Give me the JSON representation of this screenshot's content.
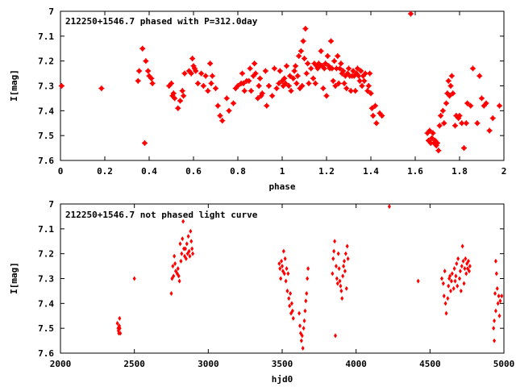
{
  "chart_data": [
    {
      "type": "scatter",
      "title": "212250+1546.7 phased with P=312.0day",
      "xlabel": "phase",
      "ylabel": "I[mag]",
      "xlim": [
        0,
        2
      ],
      "ylim": [
        7.6,
        7
      ],
      "y_inverted": true,
      "grid": false,
      "color": "#ff0000",
      "xticks": [
        "0",
        "0.2",
        "0.4",
        "0.6",
        "0.8",
        "1",
        "1.2",
        "1.4",
        "1.6",
        "1.8",
        "2"
      ],
      "yticks": [
        "7",
        "7.1",
        "7.2",
        "7.3",
        "7.4",
        "7.5",
        "7.6"
      ],
      "points": [
        [
          0.005,
          7.3
        ],
        [
          0.185,
          7.31
        ],
        [
          0.35,
          7.28
        ],
        [
          0.355,
          7.24
        ],
        [
          0.37,
          7.15
        ],
        [
          0.38,
          7.53
        ],
        [
          0.385,
          7.2
        ],
        [
          0.395,
          7.24
        ],
        [
          0.4,
          7.26
        ],
        [
          0.41,
          7.27
        ],
        [
          0.415,
          7.29
        ],
        [
          0.49,
          7.3
        ],
        [
          0.5,
          7.29
        ],
        [
          0.505,
          7.34
        ],
        [
          0.51,
          7.33
        ],
        [
          0.515,
          7.35
        ],
        [
          0.53,
          7.39
        ],
        [
          0.54,
          7.36
        ],
        [
          0.55,
          7.32
        ],
        [
          0.555,
          7.34
        ],
        [
          0.56,
          7.25
        ],
        [
          0.58,
          7.24
        ],
        [
          0.59,
          7.25
        ],
        [
          0.595,
          7.19
        ],
        [
          0.6,
          7.22
        ],
        [
          0.605,
          7.23
        ],
        [
          0.61,
          7.24
        ],
        [
          0.62,
          7.29
        ],
        [
          0.635,
          7.25
        ],
        [
          0.645,
          7.3
        ],
        [
          0.655,
          7.26
        ],
        [
          0.665,
          7.32
        ],
        [
          0.675,
          7.21
        ],
        [
          0.68,
          7.29
        ],
        [
          0.685,
          7.26
        ],
        [
          0.7,
          7.31
        ],
        [
          0.71,
          7.38
        ],
        [
          0.72,
          7.42
        ],
        [
          0.73,
          7.44
        ],
        [
          0.75,
          7.35
        ],
        [
          0.76,
          7.4
        ],
        [
          0.78,
          7.37
        ],
        [
          0.79,
          7.31
        ],
        [
          0.8,
          7.3
        ],
        [
          0.815,
          7.29
        ],
        [
          0.82,
          7.25
        ],
        [
          0.825,
          7.29
        ],
        [
          0.83,
          7.32
        ],
        [
          0.84,
          7.28
        ],
        [
          0.85,
          7.28
        ],
        [
          0.855,
          7.23
        ],
        [
          0.86,
          7.32
        ],
        [
          0.87,
          7.26
        ],
        [
          0.875,
          7.21
        ],
        [
          0.88,
          7.25
        ],
        [
          0.89,
          7.35
        ],
        [
          0.895,
          7.3
        ],
        [
          0.9,
          7.27
        ],
        [
          0.905,
          7.34
        ],
        [
          0.91,
          7.33
        ],
        [
          0.925,
          7.24
        ],
        [
          0.93,
          7.38
        ],
        [
          0.94,
          7.3
        ],
        [
          0.955,
          7.34
        ],
        [
          0.965,
          7.23
        ],
        [
          0.975,
          7.31
        ],
        [
          0.985,
          7.29
        ],
        [
          0.99,
          7.24
        ],
        [
          1.0,
          7.28
        ],
        [
          1.005,
          7.3
        ],
        [
          1.01,
          7.27
        ],
        [
          1.015,
          7.29
        ],
        [
          1.02,
          7.22
        ],
        [
          1.03,
          7.3
        ],
        [
          1.035,
          7.26
        ],
        [
          1.04,
          7.32
        ],
        [
          1.05,
          7.27
        ],
        [
          1.055,
          7.24
        ],
        [
          1.06,
          7.22
        ],
        [
          1.065,
          7.29
        ],
        [
          1.07,
          7.26
        ],
        [
          1.075,
          7.18
        ],
        [
          1.08,
          7.31
        ],
        [
          1.085,
          7.16
        ],
        [
          1.09,
          7.3
        ],
        [
          1.095,
          7.12
        ],
        [
          1.1,
          7.19
        ],
        [
          1.105,
          7.07
        ],
        [
          1.11,
          7.25
        ],
        [
          1.115,
          7.21
        ],
        [
          1.12,
          7.29
        ],
        [
          1.13,
          7.23
        ],
        [
          1.14,
          7.27
        ],
        [
          1.145,
          7.21
        ],
        [
          1.15,
          7.29
        ],
        [
          1.155,
          7.22
        ],
        [
          1.16,
          7.23
        ],
        [
          1.165,
          7.21
        ],
        [
          1.17,
          7.22
        ],
        [
          1.175,
          7.16
        ],
        [
          1.18,
          7.22
        ],
        [
          1.185,
          7.31
        ],
        [
          1.19,
          7.23
        ],
        [
          1.195,
          7.21
        ],
        [
          1.2,
          7.34
        ],
        [
          1.205,
          7.18
        ],
        [
          1.21,
          7.22
        ],
        [
          1.215,
          7.23
        ],
        [
          1.22,
          7.12
        ],
        [
          1.225,
          7.23
        ],
        [
          1.23,
          7.28
        ],
        [
          1.235,
          7.2
        ],
        [
          1.24,
          7.3
        ],
        [
          1.245,
          7.23
        ],
        [
          1.25,
          7.18
        ],
        [
          1.255,
          7.29
        ],
        [
          1.26,
          7.23
        ],
        [
          1.265,
          7.21
        ],
        [
          1.27,
          7.25
        ],
        [
          1.275,
          7.24
        ],
        [
          1.28,
          7.29
        ],
        [
          1.285,
          7.26
        ],
        [
          1.29,
          7.31
        ],
        [
          1.295,
          7.25
        ],
        [
          1.3,
          7.23
        ],
        [
          1.305,
          7.26
        ],
        [
          1.31,
          7.32
        ],
        [
          1.315,
          7.26
        ],
        [
          1.32,
          7.24
        ],
        [
          1.325,
          7.26
        ],
        [
          1.33,
          7.32
        ],
        [
          1.335,
          7.25
        ],
        [
          1.34,
          7.23
        ],
        [
          1.345,
          7.26
        ],
        [
          1.35,
          7.28
        ],
        [
          1.355,
          7.24
        ],
        [
          1.36,
          7.3
        ],
        [
          1.365,
          7.26
        ],
        [
          1.37,
          7.28
        ],
        [
          1.375,
          7.25
        ],
        [
          1.385,
          7.32
        ],
        [
          1.39,
          7.3
        ],
        [
          1.395,
          7.25
        ],
        [
          1.4,
          7.33
        ],
        [
          1.405,
          7.39
        ],
        [
          1.41,
          7.42
        ],
        [
          1.42,
          7.38
        ],
        [
          1.425,
          7.45
        ],
        [
          1.44,
          7.41
        ],
        [
          1.45,
          7.42
        ],
        [
          1.58,
          7.01
        ],
        [
          1.655,
          7.49
        ],
        [
          1.66,
          7.52
        ],
        [
          1.665,
          7.48
        ],
        [
          1.67,
          7.53
        ],
        [
          1.675,
          7.51
        ],
        [
          1.68,
          7.49
        ],
        [
          1.685,
          7.53
        ],
        [
          1.69,
          7.52
        ],
        [
          1.695,
          7.54
        ],
        [
          1.7,
          7.53
        ],
        [
          1.705,
          7.56
        ],
        [
          1.71,
          7.46
        ],
        [
          1.715,
          7.42
        ],
        [
          1.725,
          7.4
        ],
        [
          1.73,
          7.45
        ],
        [
          1.74,
          7.37
        ],
        [
          1.745,
          7.33
        ],
        [
          1.75,
          7.28
        ],
        [
          1.755,
          7.34
        ],
        [
          1.76,
          7.3
        ],
        [
          1.765,
          7.26
        ],
        [
          1.77,
          7.33
        ],
        [
          1.78,
          7.46
        ],
        [
          1.785,
          7.42
        ],
        [
          1.795,
          7.43
        ],
        [
          1.8,
          7.42
        ],
        [
          1.81,
          7.45
        ],
        [
          1.82,
          7.55
        ],
        [
          1.83,
          7.45
        ],
        [
          1.835,
          7.37
        ],
        [
          1.85,
          7.38
        ],
        [
          1.86,
          7.23
        ],
        [
          1.88,
          7.45
        ],
        [
          1.89,
          7.26
        ],
        [
          1.9,
          7.35
        ],
        [
          1.91,
          7.38
        ],
        [
          1.92,
          7.37
        ],
        [
          1.935,
          7.48
        ],
        [
          1.95,
          7.43
        ],
        [
          1.98,
          7.38
        ]
      ]
    },
    {
      "type": "scatter",
      "title": "212250+1546.7 not phased light curve",
      "xlabel": "hjd0",
      "ylabel": "I[mag]",
      "xlim": [
        2000,
        5000
      ],
      "ylim": [
        7.6,
        7
      ],
      "y_inverted": true,
      "grid": false,
      "color": "#ff0000",
      "xticks": [
        "2000",
        "2500",
        "3000",
        "3500",
        "4000",
        "4500",
        "5000"
      ],
      "yticks": [
        "7",
        "7.1",
        "7.2",
        "7.3",
        "7.4",
        "7.5",
        "7.6"
      ],
      "points": [
        [
          2385,
          7.48
        ],
        [
          2390,
          7.5
        ],
        [
          2392,
          7.51
        ],
        [
          2395,
          7.52
        ],
        [
          2398,
          7.49
        ],
        [
          2400,
          7.46
        ],
        [
          2402,
          7.5
        ],
        [
          2405,
          7.52
        ],
        [
          2500,
          7.3
        ],
        [
          2750,
          7.36
        ],
        [
          2755,
          7.3
        ],
        [
          2760,
          7.25
        ],
        [
          2765,
          7.29
        ],
        [
          2770,
          7.21
        ],
        [
          2775,
          7.24
        ],
        [
          2780,
          7.27
        ],
        [
          2790,
          7.28
        ],
        [
          2795,
          7.26
        ],
        [
          2800,
          7.29
        ],
        [
          2805,
          7.31
        ],
        [
          2810,
          7.16
        ],
        [
          2815,
          7.23
        ],
        [
          2820,
          7.2
        ],
        [
          2825,
          7.14
        ],
        [
          2830,
          7.07
        ],
        [
          2835,
          7.18
        ],
        [
          2840,
          7.21
        ],
        [
          2845,
          7.18
        ],
        [
          2850,
          7.22
        ],
        [
          2855,
          7.16
        ],
        [
          2860,
          7.2
        ],
        [
          2865,
          7.13
        ],
        [
          2870,
          7.19
        ],
        [
          2875,
          7.21
        ],
        [
          2880,
          7.11
        ],
        [
          2885,
          7.15
        ],
        [
          2890,
          7.18
        ],
        [
          2895,
          7.2
        ],
        [
          3480,
          7.24
        ],
        [
          3485,
          7.26
        ],
        [
          3490,
          7.3
        ],
        [
          3495,
          7.23
        ],
        [
          3500,
          7.25
        ],
        [
          3505,
          7.27
        ],
        [
          3510,
          7.19
        ],
        [
          3515,
          7.28
        ],
        [
          3520,
          7.22
        ],
        [
          3525,
          7.31
        ],
        [
          3530,
          7.26
        ],
        [
          3535,
          7.35
        ],
        [
          3540,
          7.28
        ],
        [
          3545,
          7.38
        ],
        [
          3550,
          7.41
        ],
        [
          3555,
          7.36
        ],
        [
          3560,
          7.44
        ],
        [
          3565,
          7.4
        ],
        [
          3570,
          7.43
        ],
        [
          3575,
          7.46
        ],
        [
          3615,
          7.44
        ],
        [
          3620,
          7.49
        ],
        [
          3625,
          7.52
        ],
        [
          3630,
          7.55
        ],
        [
          3635,
          7.53
        ],
        [
          3640,
          7.58
        ],
        [
          3645,
          7.5
        ],
        [
          3650,
          7.47
        ],
        [
          3655,
          7.43
        ],
        [
          3660,
          7.39
        ],
        [
          3665,
          7.36
        ],
        [
          3670,
          7.3
        ],
        [
          3675,
          7.26
        ],
        [
          3840,
          7.28
        ],
        [
          3845,
          7.22
        ],
        [
          3850,
          7.19
        ],
        [
          3855,
          7.15
        ],
        [
          3860,
          7.53
        ],
        [
          3865,
          7.25
        ],
        [
          3870,
          7.3
        ],
        [
          3875,
          7.32
        ],
        [
          3880,
          7.2
        ],
        [
          3885,
          7.26
        ],
        [
          3890,
          7.31
        ],
        [
          3895,
          7.33
        ],
        [
          3900,
          7.35
        ],
        [
          3905,
          7.38
        ],
        [
          3910,
          7.29
        ],
        [
          3915,
          7.25
        ],
        [
          3920,
          7.23
        ],
        [
          3925,
          7.27
        ],
        [
          3930,
          7.2
        ],
        [
          3935,
          7.34
        ],
        [
          3940,
          7.17
        ],
        [
          3945,
          7.22
        ],
        [
          4225,
          7.01
        ],
        [
          4420,
          7.31
        ],
        [
          4580,
          7.3
        ],
        [
          4590,
          7.32
        ],
        [
          4595,
          7.37
        ],
        [
          4600,
          7.27
        ],
        [
          4605,
          7.4
        ],
        [
          4610,
          7.44
        ],
        [
          4620,
          7.38
        ],
        [
          4625,
          7.33
        ],
        [
          4630,
          7.3
        ],
        [
          4635,
          7.29
        ],
        [
          4640,
          7.35
        ],
        [
          4645,
          7.31
        ],
        [
          4650,
          7.28
        ],
        [
          4660,
          7.34
        ],
        [
          4665,
          7.26
        ],
        [
          4670,
          7.31
        ],
        [
          4675,
          7.29
        ],
        [
          4680,
          7.24
        ],
        [
          4685,
          7.33
        ],
        [
          4690,
          7.22
        ],
        [
          4700,
          7.3
        ],
        [
          4705,
          7.27
        ],
        [
          4710,
          7.35
        ],
        [
          4715,
          7.25
        ],
        [
          4720,
          7.17
        ],
        [
          4725,
          7.23
        ],
        [
          4730,
          7.32
        ],
        [
          4735,
          7.26
        ],
        [
          4740,
          7.22
        ],
        [
          4745,
          7.28
        ],
        [
          4750,
          7.24
        ],
        [
          4755,
          7.26
        ],
        [
          4760,
          7.23
        ],
        [
          4765,
          7.27
        ],
        [
          4770,
          7.25
        ],
        [
          4930,
          7.5
        ],
        [
          4935,
          7.47
        ],
        [
          4940,
          7.36
        ],
        [
          4945,
          7.43
        ],
        [
          4950,
          7.28
        ],
        [
          4955,
          7.34
        ],
        [
          4960,
          7.4
        ],
        [
          4965,
          7.37
        ],
        [
          4970,
          7.45
        ],
        [
          4975,
          7.39
        ],
        [
          4985,
          7.37
        ],
        [
          4945,
          7.23
        ],
        [
          4935,
          7.55
        ]
      ]
    }
  ]
}
